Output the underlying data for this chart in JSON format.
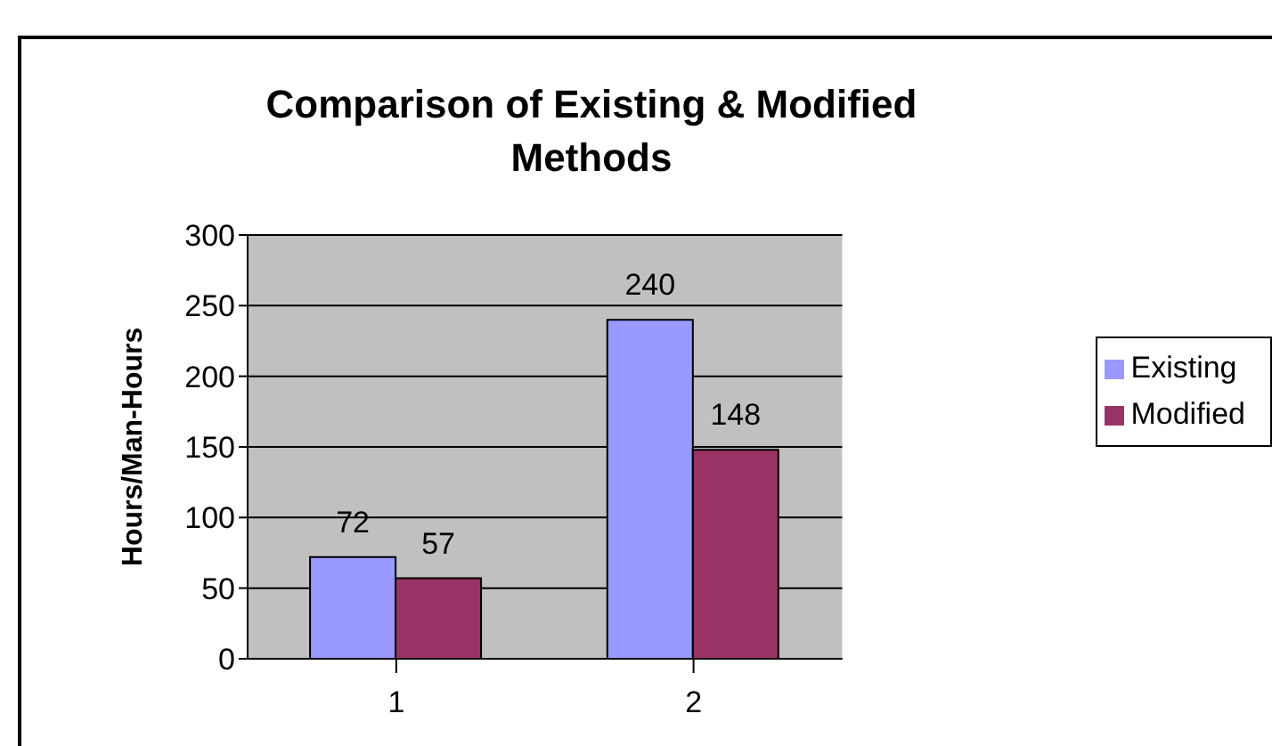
{
  "chart_data": {
    "type": "bar",
    "title": "Comparison of Existing & Modified Methods",
    "ylabel": "Hours/Man-Hours",
    "categories": [
      "1",
      "2"
    ],
    "series": [
      {
        "name": "Existing",
        "color": "#9999ff",
        "values": [
          72,
          240
        ]
      },
      {
        "name": "Modified",
        "color": "#993366",
        "values": [
          57,
          148
        ]
      }
    ],
    "ylim": [
      0,
      300
    ],
    "yticks": [
      0,
      50,
      100,
      150,
      200,
      250,
      300
    ],
    "grid": "y",
    "legend": "right",
    "data_labels": true
  }
}
